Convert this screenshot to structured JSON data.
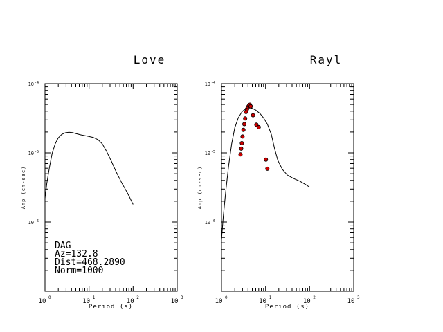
{
  "chart_data": [
    {
      "type": "line",
      "title": "Love",
      "xlabel": "Period (s)",
      "ylabel": "Amp (cm-sec)",
      "x_scale": "log",
      "y_scale": "log",
      "xlim": [
        1,
        1000
      ],
      "ylim": [
        1e-07,
        0.0001
      ],
      "x_ticks": [
        "10",
        "10",
        "10",
        "10"
      ],
      "x_tick_exps": [
        "0",
        "1",
        "2",
        "3"
      ],
      "y_ticks": [
        "10",
        "10",
        "10"
      ],
      "y_tick_exps": [
        "-4",
        "-5",
        "-6"
      ],
      "series": [
        {
          "x": [
            1.0,
            1.1,
            1.25,
            1.45,
            1.7,
            2.0,
            2.4,
            2.9,
            3.5,
            4.2,
            5.0,
            6.5,
            9.0,
            12.5,
            16,
            20,
            25,
            32,
            42,
            55,
            75,
            100
          ],
          "y": [
            2.2e-06,
            3.6e-06,
            6e-06,
            9.8e-06,
            1.35e-05,
            1.65e-05,
            1.85e-05,
            1.95e-05,
            1.98e-05,
            1.96e-05,
            1.9e-05,
            1.82e-05,
            1.75e-05,
            1.67e-05,
            1.55e-05,
            1.35e-05,
            1.05e-05,
            7.6e-06,
            5.2e-06,
            3.7e-06,
            2.6e-06,
            1.8e-06
          ]
        }
      ],
      "annotations": [
        "DAG",
        "Az=132.8",
        "Dist=468.2890",
        "Norm=1000"
      ]
    },
    {
      "type": "line",
      "title": "Rayl",
      "xlabel": "Period (s)",
      "ylabel": "Amp (cm-sec)",
      "x_scale": "log",
      "y_scale": "log",
      "xlim": [
        1,
        1000
      ],
      "ylim": [
        1e-07,
        0.0001
      ],
      "x_ticks": [
        "10",
        "10",
        "10",
        "10"
      ],
      "x_tick_exps": [
        "0",
        "1",
        "2",
        "3"
      ],
      "y_ticks": [
        "10",
        "10",
        "10"
      ],
      "y_tick_exps": [
        "-4",
        "-5",
        "-6"
      ],
      "series": [
        {
          "x": [
            1.0,
            1.1,
            1.25,
            1.45,
            1.7,
            2.0,
            2.4,
            2.9,
            3.5,
            4.2,
            5.0,
            6.0,
            7.5,
            9.0,
            11,
            13.5,
            16,
            19,
            24,
            31,
            42,
            60,
            80,
            100
          ],
          "y": [
            5.5e-07,
            1.2e-06,
            2.8e-06,
            6.5e-06,
            1.35e-05,
            2.3e-05,
            3.2e-05,
            3.9e-05,
            4.35e-05,
            4.5e-05,
            4.4e-05,
            4.15e-05,
            3.7e-05,
            3.2e-05,
            2.6e-05,
            1.85e-05,
            1.15e-05,
            7.8e-06,
            5.8e-06,
            4.8e-06,
            4.3e-06,
            3.9e-06,
            3.5e-06,
            3.2e-06
          ]
        },
        {
          "type": "scatter",
          "color": "#cc0000",
          "x": [
            2.7,
            2.8,
            2.9,
            3.0,
            3.15,
            3.3,
            3.45,
            3.6,
            3.8,
            4.0,
            4.2,
            4.4,
            4.6,
            5.2,
            6.2,
            7.0,
            10.2,
            11.0
          ],
          "y": [
            9.5e-06,
            1.15e-05,
            1.38e-05,
            1.72e-05,
            2.15e-05,
            2.6e-05,
            3.15e-05,
            3.9e-05,
            4.3e-05,
            4.6e-05,
            4.8e-05,
            4.95e-05,
            4.7e-05,
            3.5e-05,
            2.55e-05,
            2.35e-05,
            8e-06,
            5.9e-06
          ]
        }
      ]
    }
  ]
}
